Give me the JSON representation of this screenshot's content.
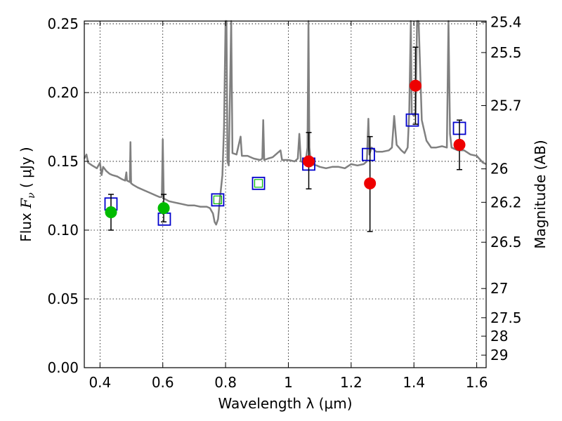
{
  "chart_data": {
    "type": "scatter",
    "xlabel": "Wavelength  λ (μm)",
    "ylabel_left": {
      "prefix": "Flux  ",
      "symbol": "F",
      "subscript": "ν",
      "unit": "  ( μJy )"
    },
    "ylabel_right": "Magnitude (AB)",
    "xlim": [
      0.35,
      1.63
    ],
    "ylim": [
      0.0,
      0.252
    ],
    "x_ticks": [
      0.4,
      0.6,
      0.8,
      1.0,
      1.2,
      1.4,
      1.6
    ],
    "x_tick_labels": [
      "0.4",
      "0.6",
      "0.8",
      "1",
      "1.2",
      "1.4",
      "1.6"
    ],
    "y_ticks": [
      0.0,
      0.05,
      0.1,
      0.15,
      0.2,
      0.25
    ],
    "y_tick_labels": [
      "0.00",
      "0.05",
      "0.10",
      "0.15",
      "0.20",
      "0.25"
    ],
    "right_ticks": [
      {
        "label": "25.4",
        "mag": 25.4
      },
      {
        "label": "25.5",
        "mag": 25.5
      },
      {
        "label": "25.7",
        "mag": 25.7
      },
      {
        "label": "26",
        "mag": 26.0
      },
      {
        "label": "26.2",
        "mag": 26.2
      },
      {
        "label": "26.5",
        "mag": 26.5
      },
      {
        "label": "27",
        "mag": 27.0
      },
      {
        "label": "27.5",
        "mag": 27.5
      },
      {
        "label": "28",
        "mag": 28.0
      },
      {
        "label": "29",
        "mag": 29.0
      }
    ],
    "grid": true,
    "colors": {
      "template": "#808080",
      "model_box": "#0000cc",
      "optical": "#00bb00",
      "infrared": "#ee0000",
      "errorbar": "#000000"
    },
    "model_points": [
      {
        "x": 0.435,
        "y": 0.119
      },
      {
        "x": 0.605,
        "y": 0.108
      },
      {
        "x": 0.775,
        "y": 0.122
      },
      {
        "x": 0.905,
        "y": 0.134
      },
      {
        "x": 1.065,
        "y": 0.148
      },
      {
        "x": 1.255,
        "y": 0.155
      },
      {
        "x": 1.395,
        "y": 0.18
      },
      {
        "x": 1.545,
        "y": 0.174
      }
    ],
    "optical_points": [
      {
        "x": 0.435,
        "y": 0.113,
        "yerr_low": 0.013,
        "yerr_high": 0.013
      },
      {
        "x": 0.603,
        "y": 0.116,
        "yerr_low": 0.01,
        "yerr_high": 0.01
      }
    ],
    "infrared_points": [
      {
        "x": 1.065,
        "y": 0.15,
        "yerr_low": 0.02,
        "yerr_high": 0.021
      },
      {
        "x": 1.26,
        "y": 0.134,
        "yerr_low": 0.035,
        "yerr_high": 0.034
      },
      {
        "x": 1.405,
        "y": 0.205,
        "yerr_low": 0.028,
        "yerr_high": 0.028
      },
      {
        "x": 1.545,
        "y": 0.162,
        "yerr_low": 0.018,
        "yerr_high": 0.018
      }
    ],
    "open_markers": [
      {
        "x": 0.775,
        "y": 0.122
      },
      {
        "x": 0.905,
        "y": 0.134
      }
    ],
    "template_spectrum": [
      [
        0.35,
        0.152
      ],
      [
        0.357,
        0.155
      ],
      [
        0.362,
        0.149
      ],
      [
        0.375,
        0.147
      ],
      [
        0.39,
        0.145
      ],
      [
        0.4,
        0.149
      ],
      [
        0.405,
        0.14
      ],
      [
        0.41,
        0.146
      ],
      [
        0.42,
        0.143
      ],
      [
        0.43,
        0.141
      ],
      [
        0.44,
        0.14
      ],
      [
        0.455,
        0.139
      ],
      [
        0.47,
        0.137
      ],
      [
        0.48,
        0.136
      ],
      [
        0.484,
        0.142
      ],
      [
        0.486,
        0.136
      ],
      [
        0.495,
        0.135
      ],
      [
        0.497,
        0.164
      ],
      [
        0.499,
        0.134
      ],
      [
        0.505,
        0.133
      ],
      [
        0.52,
        0.131
      ],
      [
        0.54,
        0.129
      ],
      [
        0.56,
        0.127
      ],
      [
        0.58,
        0.125
      ],
      [
        0.59,
        0.124
      ],
      [
        0.597,
        0.124
      ],
      [
        0.6,
        0.166
      ],
      [
        0.603,
        0.123
      ],
      [
        0.62,
        0.121
      ],
      [
        0.64,
        0.12
      ],
      [
        0.66,
        0.119
      ],
      [
        0.68,
        0.118
      ],
      [
        0.7,
        0.118
      ],
      [
        0.72,
        0.117
      ],
      [
        0.74,
        0.117
      ],
      [
        0.75,
        0.116
      ],
      [
        0.76,
        0.112
      ],
      [
        0.765,
        0.106
      ],
      [
        0.77,
        0.104
      ],
      [
        0.776,
        0.108
      ],
      [
        0.783,
        0.125
      ],
      [
        0.79,
        0.14
      ],
      [
        0.795,
        0.175
      ],
      [
        0.8,
        0.255
      ],
      [
        0.803,
        0.255
      ],
      [
        0.806,
        0.15
      ],
      [
        0.81,
        0.147
      ],
      [
        0.818,
        0.255
      ],
      [
        0.822,
        0.156
      ],
      [
        0.835,
        0.155
      ],
      [
        0.848,
        0.168
      ],
      [
        0.852,
        0.154
      ],
      [
        0.87,
        0.154
      ],
      [
        0.89,
        0.152
      ],
      [
        0.91,
        0.151
      ],
      [
        0.917,
        0.152
      ],
      [
        0.92,
        0.18
      ],
      [
        0.923,
        0.151
      ],
      [
        0.935,
        0.152
      ],
      [
        0.95,
        0.153
      ],
      [
        0.975,
        0.158
      ],
      [
        0.98,
        0.151
      ],
      [
        1.0,
        0.151
      ],
      [
        1.02,
        0.15
      ],
      [
        1.03,
        0.152
      ],
      [
        1.035,
        0.17
      ],
      [
        1.04,
        0.15
      ],
      [
        1.055,
        0.149
      ],
      [
        1.061,
        0.16
      ],
      [
        1.064,
        0.255
      ],
      [
        1.067,
        0.16
      ],
      [
        1.072,
        0.148
      ],
      [
        1.09,
        0.147
      ],
      [
        1.1,
        0.146
      ],
      [
        1.12,
        0.145
      ],
      [
        1.14,
        0.146
      ],
      [
        1.16,
        0.146
      ],
      [
        1.18,
        0.145
      ],
      [
        1.2,
        0.148
      ],
      [
        1.22,
        0.147
      ],
      [
        1.24,
        0.148
      ],
      [
        1.25,
        0.15
      ],
      [
        1.255,
        0.181
      ],
      [
        1.258,
        0.155
      ],
      [
        1.265,
        0.16
      ],
      [
        1.28,
        0.157
      ],
      [
        1.3,
        0.157
      ],
      [
        1.32,
        0.158
      ],
      [
        1.33,
        0.16
      ],
      [
        1.337,
        0.183
      ],
      [
        1.345,
        0.162
      ],
      [
        1.36,
        0.158
      ],
      [
        1.37,
        0.156
      ],
      [
        1.38,
        0.16
      ],
      [
        1.385,
        0.185
      ],
      [
        1.39,
        0.255
      ],
      [
        1.393,
        0.185
      ],
      [
        1.4,
        0.183
      ],
      [
        1.405,
        0.185
      ],
      [
        1.41,
        0.255
      ],
      [
        1.415,
        0.255
      ],
      [
        1.425,
        0.18
      ],
      [
        1.44,
        0.165
      ],
      [
        1.455,
        0.16
      ],
      [
        1.47,
        0.16
      ],
      [
        1.49,
        0.161
      ],
      [
        1.505,
        0.16
      ],
      [
        1.51,
        0.255
      ],
      [
        1.515,
        0.17
      ],
      [
        1.52,
        0.16
      ],
      [
        1.54,
        0.158
      ],
      [
        1.56,
        0.158
      ],
      [
        1.58,
        0.155
      ],
      [
        1.6,
        0.154
      ],
      [
        1.62,
        0.149
      ],
      [
        1.63,
        0.148
      ]
    ]
  }
}
